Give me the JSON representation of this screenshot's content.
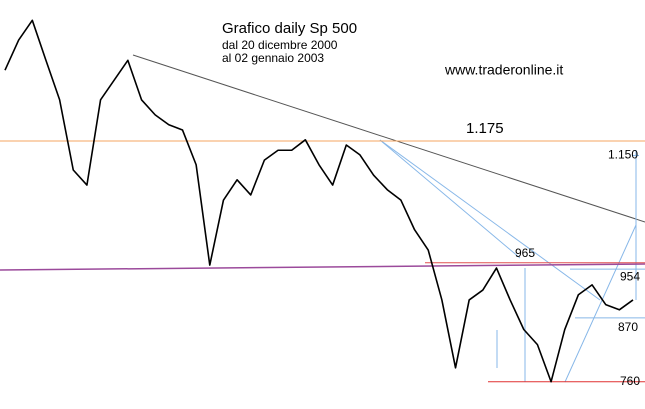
{
  "chart_data": {
    "type": "line",
    "title": "Grafico daily Sp 500",
    "subtitle": [
      "dal 20 dicembre 2000",
      "al 02 gennaio 2003"
    ],
    "source": "www.traderonline.it",
    "values": [
      1297,
      1349,
      1383,
      1314,
      1246,
      1125,
      1099,
      1246,
      1280,
      1314,
      1246,
      1220,
      1203,
      1194,
      1134,
      961,
      1073,
      1108,
      1082,
      1142,
      1159,
      1159,
      1177,
      1134,
      1099,
      1168,
      1151,
      1116,
      1091,
      1073,
      1022,
      987,
      901,
      784,
      901,
      918,
      956,
      901,
      850,
      824,
      760,
      850,
      910,
      927,
      893,
      884,
      901
    ],
    "color": "#000000",
    "ylim": [
      713,
      1418
    ],
    "levels": [
      {
        "label": "1.175",
        "value": 1175,
        "color": "#f4a460"
      },
      {
        "label": "1.150",
        "value": 1150,
        "color": "#87b7e8"
      },
      {
        "label": "965",
        "value": 965,
        "color": "#e05050"
      },
      {
        "label": "954",
        "value": 954,
        "color": "#87b7e8"
      },
      {
        "label": "870",
        "value": 870,
        "color": "#87b7e8"
      },
      {
        "label": "760",
        "value": 760,
        "color": "#e03030"
      }
    ]
  }
}
